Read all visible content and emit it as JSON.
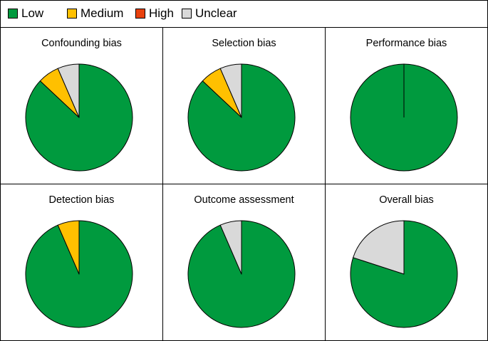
{
  "legend": [
    {
      "label": "Low",
      "color": "#009a3e"
    },
    {
      "label": "Medium",
      "color": "#ffc000"
    },
    {
      "label": "High",
      "color": "#e8410d"
    },
    {
      "label": "Unclear",
      "color": "#d9d9d9"
    }
  ],
  "chart_data": [
    {
      "type": "pie",
      "title": "Confounding bias",
      "slices": [
        {
          "name": "Low",
          "value": 87
        },
        {
          "name": "Medium",
          "value": 6.5
        },
        {
          "name": "High",
          "value": 0
        },
        {
          "name": "Unclear",
          "value": 6.5
        }
      ]
    },
    {
      "type": "pie",
      "title": "Selection bias",
      "slices": [
        {
          "name": "Low",
          "value": 87
        },
        {
          "name": "Medium",
          "value": 6.5
        },
        {
          "name": "High",
          "value": 0
        },
        {
          "name": "Unclear",
          "value": 6.5
        }
      ]
    },
    {
      "type": "pie",
      "title": "Performance bias",
      "slices": [
        {
          "name": "Low",
          "value": 100
        },
        {
          "name": "Medium",
          "value": 0
        },
        {
          "name": "High",
          "value": 0
        },
        {
          "name": "Unclear",
          "value": 0
        }
      ]
    },
    {
      "type": "pie",
      "title": "Detection bias",
      "slices": [
        {
          "name": "Low",
          "value": 93.5
        },
        {
          "name": "Medium",
          "value": 6.5
        },
        {
          "name": "High",
          "value": 0
        },
        {
          "name": "Unclear",
          "value": 0
        }
      ]
    },
    {
      "type": "pie",
      "title": "Outcome assessment",
      "slices": [
        {
          "name": "Low",
          "value": 93.5
        },
        {
          "name": "Medium",
          "value": 0
        },
        {
          "name": "High",
          "value": 0
        },
        {
          "name": "Unclear",
          "value": 6.5
        }
      ]
    },
    {
      "type": "pie",
      "title": "Overall bias",
      "slices": [
        {
          "name": "Low",
          "value": 80
        },
        {
          "name": "Medium",
          "value": 0
        },
        {
          "name": "High",
          "value": 0
        },
        {
          "name": "Unclear",
          "value": 20
        }
      ]
    }
  ]
}
